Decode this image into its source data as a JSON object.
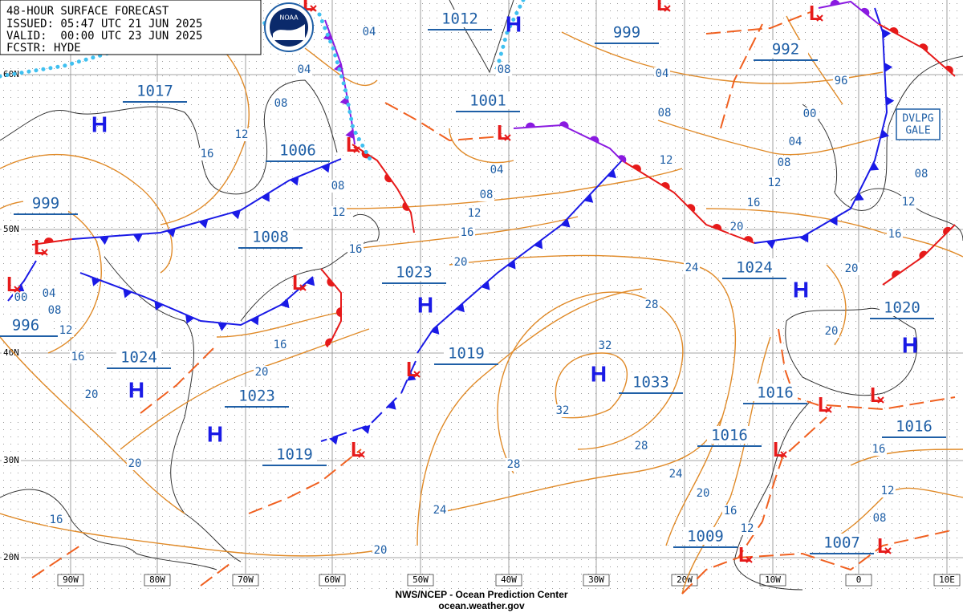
{
  "header": {
    "lines": [
      "48-HOUR SURFACE FORECAST",
      "ISSUED: 05:47 UTC 21 JUN 2025",
      "VALID:  00:00 UTC 23 JUN 2025",
      "FCSTR: HYDE"
    ],
    "logo": "NOAA"
  },
  "symbols": {
    "high": "H",
    "low": "L"
  },
  "pressure_centers": [
    "1012",
    "999",
    "992",
    "1017",
    "1001",
    "1006",
    "999",
    "1008",
    "1023",
    "1024",
    "1020",
    "996",
    "1024",
    "1019",
    "1033",
    "1016",
    "1023",
    "1016",
    "1016",
    "1019",
    "1009",
    "1007"
  ],
  "isobar_labels": [
    "04",
    "04",
    "08",
    "12",
    "16",
    "08",
    "12",
    "16",
    "08",
    "04",
    "96",
    "00",
    "08",
    "04",
    "08",
    "12",
    "16",
    "20",
    "12",
    "04",
    "08",
    "12",
    "16",
    "20",
    "24",
    "28",
    "32",
    "32",
    "28",
    "24",
    "20",
    "16",
    "12",
    "28",
    "24",
    "20",
    "16",
    "20",
    "20",
    "20",
    "16",
    "12",
    "08",
    "16",
    "12",
    "08",
    "00",
    "04",
    "08",
    "12",
    "16",
    "20",
    "20",
    "16"
  ],
  "latitudes": [
    "60N",
    "50N",
    "40N",
    "30N",
    "20N"
  ],
  "longitudes": [
    "90W",
    "80W",
    "70W",
    "60W",
    "50W",
    "40W",
    "30W",
    "20W",
    "10W",
    "0",
    "10E"
  ],
  "warning": [
    "DVLPG",
    "GALE"
  ],
  "footer": [
    "NWS/NCEP - Ocean Prediction Center",
    "ocean.weather.gov"
  ]
}
